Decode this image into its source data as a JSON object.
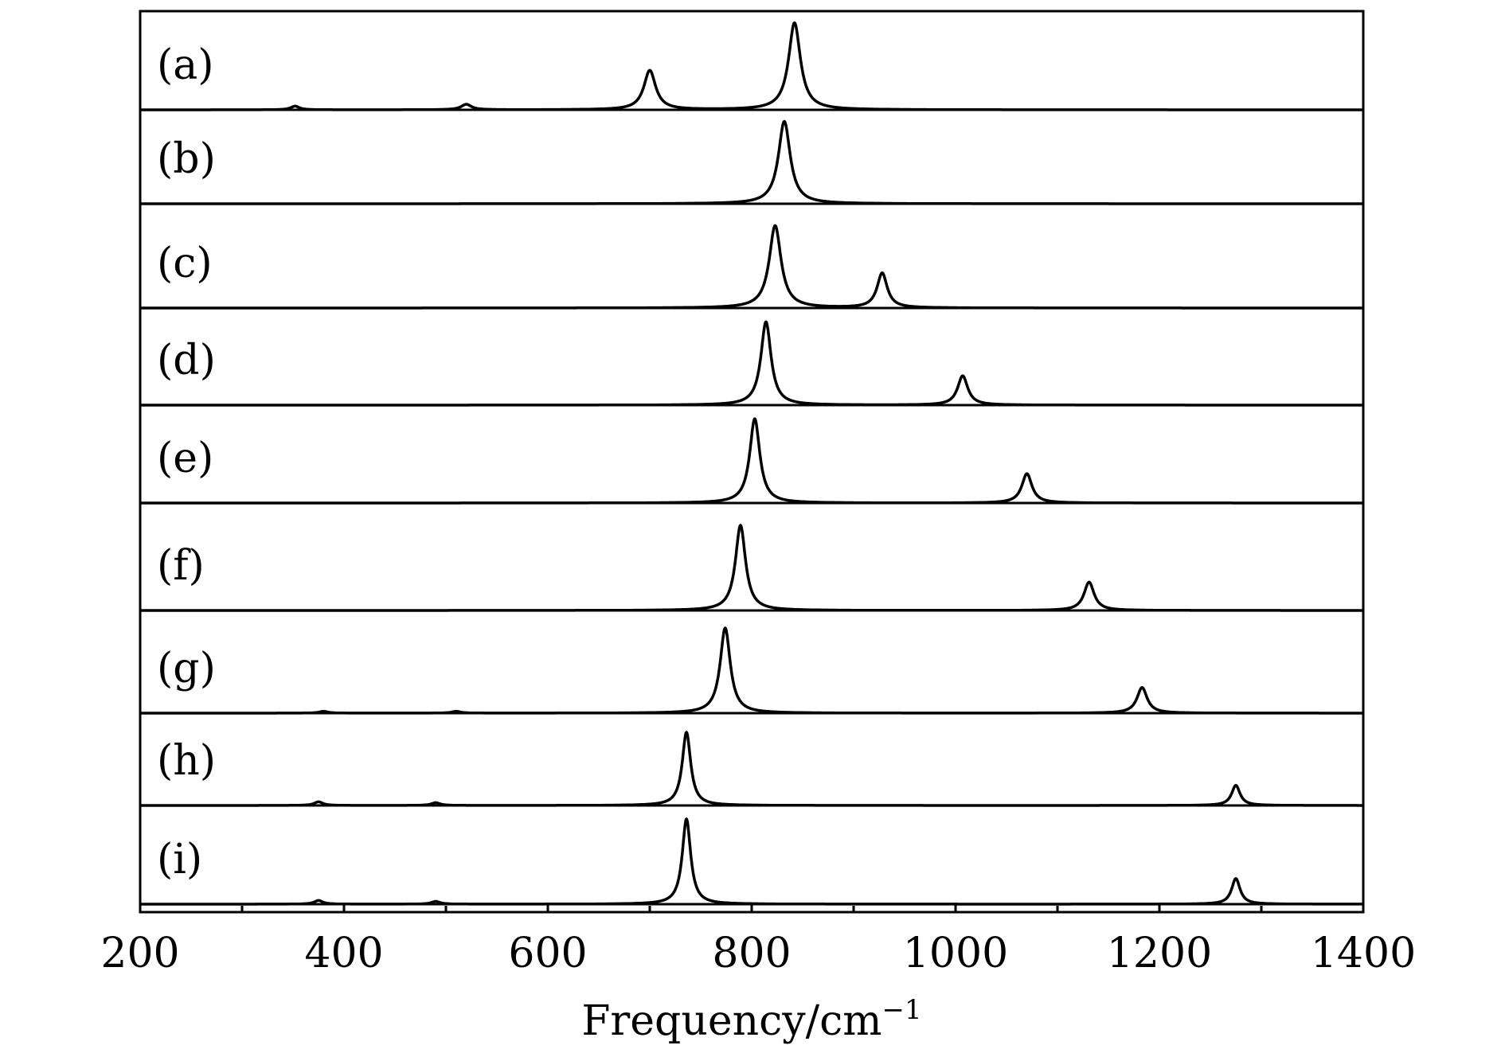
{
  "chart_data": {
    "type": "line",
    "title": "",
    "xlabel": "Frequency/cm",
    "xlabel_superscript": "−1",
    "ylabel": "",
    "xlim": [
      200,
      1400
    ],
    "x_ticks_major": [
      200,
      400,
      600,
      800,
      1000,
      1200,
      1400
    ],
    "x_ticks_minor": [
      300,
      500,
      700,
      900,
      1100,
      1300
    ],
    "grid": false,
    "legend": "none",
    "line_color": "#000000",
    "series": [
      {
        "label": "(a)",
        "peaks": [
          {
            "x": 352,
            "h": 0.04,
            "w": 5
          },
          {
            "x": 520,
            "h": 0.06,
            "w": 6
          },
          {
            "x": 700,
            "h": 0.43,
            "w": 7
          },
          {
            "x": 842,
            "h": 0.95,
            "w": 7
          }
        ]
      },
      {
        "label": "(b)",
        "peaks": [
          {
            "x": 832,
            "h": 0.9,
            "w": 7
          }
        ]
      },
      {
        "label": "(c)",
        "peaks": [
          {
            "x": 823,
            "h": 0.9,
            "w": 7
          },
          {
            "x": 928,
            "h": 0.38,
            "w": 6
          }
        ]
      },
      {
        "label": "(d)",
        "peaks": [
          {
            "x": 814,
            "h": 0.91,
            "w": 6
          },
          {
            "x": 1007,
            "h": 0.32,
            "w": 6
          }
        ]
      },
      {
        "label": "(e)",
        "peaks": [
          {
            "x": 803,
            "h": 0.92,
            "w": 6
          },
          {
            "x": 1070,
            "h": 0.32,
            "w": 6
          }
        ]
      },
      {
        "label": "(f)",
        "peaks": [
          {
            "x": 789,
            "h": 0.93,
            "w": 6
          },
          {
            "x": 1131,
            "h": 0.31,
            "w": 6
          }
        ]
      },
      {
        "label": "(g)",
        "peaks": [
          {
            "x": 380,
            "h": 0.02,
            "w": 5
          },
          {
            "x": 510,
            "h": 0.02,
            "w": 5
          },
          {
            "x": 774,
            "h": 0.93,
            "w": 6
          },
          {
            "x": 1183,
            "h": 0.28,
            "w": 6
          }
        ]
      },
      {
        "label": "(h)",
        "peaks": [
          {
            "x": 375,
            "h": 0.04,
            "w": 5
          },
          {
            "x": 490,
            "h": 0.03,
            "w": 5
          },
          {
            "x": 736,
            "h": 0.8,
            "w": 5
          },
          {
            "x": 1275,
            "h": 0.22,
            "w": 5
          }
        ]
      },
      {
        "label": "(i)",
        "peaks": [
          {
            "x": 375,
            "h": 0.04,
            "w": 5
          },
          {
            "x": 490,
            "h": 0.03,
            "w": 5
          },
          {
            "x": 736,
            "h": 0.93,
            "w": 5
          },
          {
            "x": 1275,
            "h": 0.28,
            "w": 5
          }
        ]
      }
    ]
  }
}
